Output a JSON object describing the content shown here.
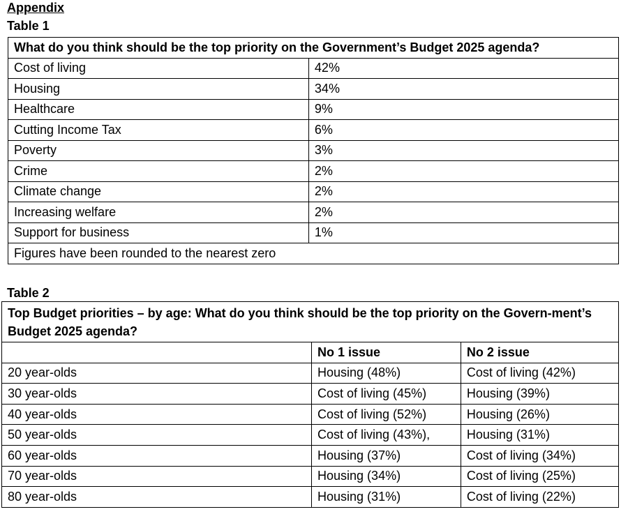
{
  "appendix": "Appendix",
  "table1": {
    "label": "Table 1",
    "title": "What do you think should be the top priority on the Government’s Budget 2025 agenda?",
    "rows": [
      {
        "item": "Cost of living",
        "value": "42%"
      },
      {
        "item": "Housing",
        "value": "34%"
      },
      {
        "item": "Healthcare",
        "value": "9%"
      },
      {
        "item": "Cutting Income Tax",
        "value": "6%"
      },
      {
        "item": "Poverty",
        "value": "3%"
      },
      {
        "item": "Crime",
        "value": "2%"
      },
      {
        "item": "Climate change",
        "value": "2%"
      },
      {
        "item": "Increasing welfare",
        "value": "2%"
      },
      {
        "item": "Support for business",
        "value": "1%"
      }
    ],
    "note": "Figures have been rounded to the nearest zero"
  },
  "table2": {
    "label": "Table 2",
    "title": "Top Budget priorities – by age: What do you think should be the top priority on the Govern-ment’s Budget 2025 agenda?",
    "headers": [
      "",
      "No 1 issue",
      "No 2 issue"
    ],
    "rows": [
      {
        "age": "20 year-olds",
        "no1": "Housing (48%)",
        "no2": "Cost of living (42%)"
      },
      {
        "age": "30 year-olds",
        "no1": "Cost of living (45%)",
        "no2": "Housing (39%)"
      },
      {
        "age": "40 year-olds",
        "no1": "Cost of living (52%)",
        "no2": "Housing (26%)"
      },
      {
        "age": "50 year-olds",
        "no1": "Cost of living (43%),",
        "no2": "Housing (31%)"
      },
      {
        "age": "60 year-olds",
        "no1": "Housing (37%)",
        "no2": "Cost of living (34%)"
      },
      {
        "age": "70 year-olds",
        "no1": "Housing (34%)",
        "no2": "Cost of living (25%)"
      },
      {
        "age": "80 year-olds",
        "no1": "Housing (31%)",
        "no2": "Cost of living (22%)"
      }
    ]
  }
}
